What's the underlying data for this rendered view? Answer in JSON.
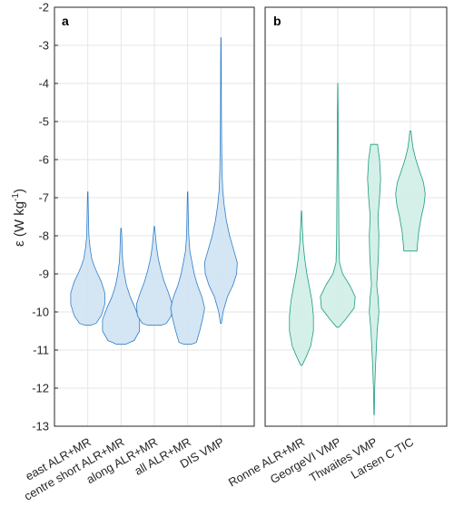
{
  "chart_data": [
    {
      "type": "violin",
      "panel_label": "a",
      "ylabel": "ε (W kg⁻¹)",
      "ylabel_main": "ε (W kg",
      "ylabel_sup": "-1",
      "ylabel_close": ")",
      "ylim": [
        -13,
        -2
      ],
      "yticks": [
        "-2",
        "-3",
        "-4",
        "-5",
        "-6",
        "-7",
        "-8",
        "-9",
        "-10",
        "-11",
        "-12",
        "-13"
      ],
      "grid": true,
      "fill_color": "#cfe2f3",
      "edge_color": "#2f7fc8",
      "categories": [
        "east ALR+MR",
        "centre short ALR+MR",
        "along ALR+MR",
        "all ALR+MR",
        "DIS VMP"
      ],
      "violins": [
        {
          "name": "east ALR+MR",
          "profile": [
            [
              -10.35,
              0.12
            ],
            [
              -10.3,
              0.38
            ],
            [
              -10.1,
              0.62
            ],
            [
              -9.8,
              0.78
            ],
            [
              -9.5,
              0.78
            ],
            [
              -9.2,
              0.62
            ],
            [
              -9.0,
              0.45
            ],
            [
              -8.8,
              0.3
            ],
            [
              -8.6,
              0.18
            ],
            [
              -8.3,
              0.1
            ],
            [
              -8.0,
              0.05
            ],
            [
              -7.5,
              0.03
            ],
            [
              -6.85,
              0.01
            ]
          ]
        },
        {
          "name": "centre short ALR+MR",
          "profile": [
            [
              -10.85,
              0.2
            ],
            [
              -10.75,
              0.6
            ],
            [
              -10.5,
              0.85
            ],
            [
              -10.2,
              0.85
            ],
            [
              -9.9,
              0.65
            ],
            [
              -9.6,
              0.42
            ],
            [
              -9.3,
              0.25
            ],
            [
              -9.0,
              0.15
            ],
            [
              -8.7,
              0.08
            ],
            [
              -8.4,
              0.05
            ],
            [
              -8.0,
              0.03
            ],
            [
              -7.8,
              0.01
            ]
          ]
        },
        {
          "name": "along ALR+MR",
          "profile": [
            [
              -10.35,
              0.3
            ],
            [
              -10.3,
              0.55
            ],
            [
              -10.1,
              0.78
            ],
            [
              -9.8,
              0.82
            ],
            [
              -9.5,
              0.65
            ],
            [
              -9.2,
              0.45
            ],
            [
              -8.9,
              0.3
            ],
            [
              -8.6,
              0.18
            ],
            [
              -8.3,
              0.1
            ],
            [
              -8.0,
              0.05
            ],
            [
              -7.75,
              0.01
            ]
          ]
        },
        {
          "name": "all ALR+MR",
          "profile": [
            [
              -10.85,
              0.15
            ],
            [
              -10.8,
              0.4
            ],
            [
              -10.5,
              0.55
            ],
            [
              -10.2,
              0.68
            ],
            [
              -9.9,
              0.78
            ],
            [
              -9.6,
              0.65
            ],
            [
              -9.3,
              0.45
            ],
            [
              -9.0,
              0.3
            ],
            [
              -8.7,
              0.2
            ],
            [
              -8.4,
              0.1
            ],
            [
              -8.0,
              0.05
            ],
            [
              -7.5,
              0.03
            ],
            [
              -6.85,
              0.01
            ]
          ]
        },
        {
          "name": "DIS VMP",
          "profile": [
            [
              -10.3,
              0.02
            ],
            [
              -10.0,
              0.1
            ],
            [
              -9.6,
              0.3
            ],
            [
              -9.3,
              0.55
            ],
            [
              -9.0,
              0.72
            ],
            [
              -8.7,
              0.75
            ],
            [
              -8.4,
              0.6
            ],
            [
              -8.0,
              0.4
            ],
            [
              -7.6,
              0.25
            ],
            [
              -7.2,
              0.15
            ],
            [
              -6.8,
              0.08
            ],
            [
              -6.3,
              0.05
            ],
            [
              -5.5,
              0.03
            ],
            [
              -4.5,
              0.02
            ],
            [
              -3.5,
              0.015
            ],
            [
              -2.8,
              0.005
            ]
          ]
        }
      ]
    },
    {
      "type": "violin",
      "panel_label": "b",
      "ylim": [
        -13,
        -2
      ],
      "grid": true,
      "fill_color": "#cfeee6",
      "edge_color": "#1e9c82",
      "categories": [
        "Ronne ALR+MR",
        "GeorgeVI VMP",
        "Thwaites VMP",
        "Larsen C TIC"
      ],
      "violins": [
        {
          "name": "Ronne ALR+MR",
          "profile": [
            [
              -11.4,
              0.03
            ],
            [
              -11.2,
              0.2
            ],
            [
              -10.9,
              0.42
            ],
            [
              -10.5,
              0.55
            ],
            [
              -10.1,
              0.55
            ],
            [
              -9.7,
              0.48
            ],
            [
              -9.3,
              0.35
            ],
            [
              -9.0,
              0.25
            ],
            [
              -8.6,
              0.15
            ],
            [
              -8.2,
              0.08
            ],
            [
              -7.8,
              0.04
            ],
            [
              -7.35,
              0.01
            ]
          ]
        },
        {
          "name": "GeorgeVI VMP",
          "profile": [
            [
              -10.4,
              0.05
            ],
            [
              -10.2,
              0.35
            ],
            [
              -9.9,
              0.75
            ],
            [
              -9.6,
              0.8
            ],
            [
              -9.3,
              0.55
            ],
            [
              -9.0,
              0.22
            ],
            [
              -8.7,
              0.08
            ],
            [
              -8.0,
              0.05
            ],
            [
              -7.0,
              0.04
            ],
            [
              -6.0,
              0.03
            ],
            [
              -5.0,
              0.02
            ],
            [
              -4.0,
              0.005
            ]
          ]
        },
        {
          "name": "Thwaites VMP",
          "profile": [
            [
              -12.7,
              0.01
            ],
            [
              -12.0,
              0.03
            ],
            [
              -11.5,
              0.06
            ],
            [
              -11.0,
              0.1
            ],
            [
              -10.5,
              0.14
            ],
            [
              -10.0,
              0.22
            ],
            [
              -9.6,
              0.18
            ],
            [
              -9.3,
              0.12
            ],
            [
              -9.0,
              0.15
            ],
            [
              -8.5,
              0.2
            ],
            [
              -8.0,
              0.22
            ],
            [
              -7.5,
              0.18
            ],
            [
              -7.0,
              0.25
            ],
            [
              -6.5,
              0.3
            ],
            [
              -6.0,
              0.25
            ],
            [
              -5.7,
              0.18
            ],
            [
              -5.6,
              0.16
            ]
          ]
        },
        {
          "name": "Larsen C TIC",
          "profile": [
            [
              -8.4,
              0.3
            ],
            [
              -8.2,
              0.33
            ],
            [
              -7.9,
              0.38
            ],
            [
              -7.5,
              0.5
            ],
            [
              -7.2,
              0.62
            ],
            [
              -6.9,
              0.68
            ],
            [
              -6.6,
              0.6
            ],
            [
              -6.3,
              0.42
            ],
            [
              -6.0,
              0.25
            ],
            [
              -5.7,
              0.12
            ],
            [
              -5.4,
              0.05
            ],
            [
              -5.25,
              0.03
            ]
          ]
        }
      ]
    }
  ]
}
